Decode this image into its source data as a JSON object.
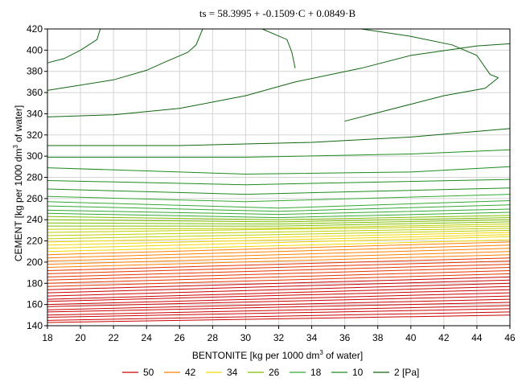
{
  "chart_data": {
    "type": "contour",
    "title": "ts = 58.3995 + -0.1509·C + 0.0849·B",
    "xlabel": {
      "pre": "BENTONITE [kg per 1000 dm",
      "sup": "3",
      "post": " of water]"
    },
    "ylabel": {
      "pre": "CEMENT [kg per 1000 dm",
      "sup": "3",
      "post": " of water]"
    },
    "xlim": [
      18,
      46
    ],
    "ylim": [
      140,
      420
    ],
    "xticks": [
      "18",
      "20",
      "22",
      "24",
      "26",
      "28",
      "30",
      "32",
      "34",
      "36",
      "38",
      "40",
      "42",
      "44",
      "46"
    ],
    "yticks": [
      "140",
      "160",
      "180",
      "200",
      "220",
      "240",
      "260",
      "280",
      "300",
      "320",
      "340",
      "360",
      "380",
      "400",
      "420"
    ],
    "grid": true,
    "legend_placement": "bottom",
    "legend": [
      {
        "label": "50",
        "color": "#cc0000"
      },
      {
        "label": "42",
        "color": "#ff7f00"
      },
      {
        "label": "34",
        "color": "#f2d600"
      },
      {
        "label": "26",
        "color": "#7fbf00"
      },
      {
        "label": "18",
        "color": "#33aa33"
      },
      {
        "label": "10",
        "color": "#1e8c1e"
      },
      {
        "label": "2 [Pa]",
        "color": "#116611"
      }
    ],
    "contour_levels": [
      2,
      10,
      18,
      26,
      34,
      42,
      50
    ],
    "contour_lines": [
      {
        "points": [
          [
            18,
            143
          ],
          [
            46,
            150
          ]
        ]
      },
      {
        "points": [
          [
            18,
            145
          ],
          [
            46,
            153
          ]
        ]
      },
      {
        "points": [
          [
            18,
            148
          ],
          [
            46,
            156
          ]
        ]
      },
      {
        "points": [
          [
            18,
            150
          ],
          [
            46,
            159
          ]
        ]
      },
      {
        "points": [
          [
            18,
            153
          ],
          [
            46,
            162
          ]
        ]
      },
      {
        "points": [
          [
            18,
            155
          ],
          [
            46,
            165
          ]
        ]
      },
      {
        "points": [
          [
            18,
            158
          ],
          [
            46,
            168
          ]
        ]
      },
      {
        "points": [
          [
            18,
            160
          ],
          [
            46,
            171
          ]
        ]
      },
      {
        "points": [
          [
            18,
            163
          ],
          [
            46,
            174
          ]
        ]
      },
      {
        "points": [
          [
            18,
            165
          ],
          [
            46,
            177
          ]
        ]
      },
      {
        "points": [
          [
            18,
            168
          ],
          [
            46,
            180
          ]
        ]
      },
      {
        "points": [
          [
            18,
            171
          ],
          [
            46,
            183
          ]
        ]
      },
      {
        "points": [
          [
            18,
            174
          ],
          [
            46,
            186
          ]
        ]
      },
      {
        "points": [
          [
            18,
            177
          ],
          [
            46,
            189
          ]
        ]
      },
      {
        "points": [
          [
            18,
            180
          ],
          [
            46,
            192
          ]
        ]
      },
      {
        "points": [
          [
            18,
            183
          ],
          [
            46,
            195
          ]
        ]
      },
      {
        "points": [
          [
            18,
            186
          ],
          [
            46,
            198
          ]
        ]
      },
      {
        "points": [
          [
            18,
            189
          ],
          [
            46,
            201
          ]
        ]
      },
      {
        "points": [
          [
            18,
            192
          ],
          [
            46,
            204
          ]
        ]
      },
      {
        "points": [
          [
            18,
            195
          ],
          [
            46,
            207
          ]
        ]
      },
      {
        "points": [
          [
            18,
            198
          ],
          [
            46,
            210
          ]
        ]
      },
      {
        "points": [
          [
            18,
            201
          ],
          [
            46,
            213
          ]
        ]
      },
      {
        "points": [
          [
            18,
            204
          ],
          [
            46,
            216
          ]
        ]
      },
      {
        "points": [
          [
            18,
            207
          ],
          [
            46,
            219
          ]
        ]
      },
      {
        "points": [
          [
            18,
            210
          ],
          [
            46,
            221
          ]
        ]
      },
      {
        "points": [
          [
            18,
            213
          ],
          [
            46,
            224
          ]
        ]
      },
      {
        "points": [
          [
            18,
            216
          ],
          [
            46,
            226
          ]
        ]
      },
      {
        "points": [
          [
            18,
            219
          ],
          [
            46,
            228
          ]
        ]
      },
      {
        "points": [
          [
            18,
            222
          ],
          [
            46,
            230
          ]
        ]
      },
      {
        "points": [
          [
            18,
            225
          ],
          [
            46,
            232
          ]
        ]
      },
      {
        "points": [
          [
            18,
            228
          ],
          [
            46,
            234
          ]
        ]
      },
      {
        "points": [
          [
            18,
            231
          ],
          [
            32,
            232
          ],
          [
            46,
            236
          ]
        ]
      },
      {
        "points": [
          [
            18,
            234
          ],
          [
            32,
            234
          ],
          [
            46,
            238
          ]
        ]
      },
      {
        "points": [
          [
            18,
            237
          ],
          [
            32,
            236
          ],
          [
            46,
            240
          ]
        ]
      },
      {
        "points": [
          [
            18,
            240
          ],
          [
            32,
            238
          ],
          [
            46,
            242
          ]
        ]
      },
      {
        "points": [
          [
            18,
            243
          ],
          [
            32,
            240
          ],
          [
            46,
            244
          ]
        ]
      },
      {
        "points": [
          [
            18,
            246
          ],
          [
            32,
            242
          ],
          [
            46,
            247
          ]
        ]
      },
      {
        "points": [
          [
            18,
            249
          ],
          [
            32,
            245
          ],
          [
            46,
            250
          ]
        ]
      },
      {
        "points": [
          [
            18,
            253
          ],
          [
            32,
            248
          ],
          [
            46,
            254
          ]
        ]
      },
      {
        "points": [
          [
            18,
            257
          ],
          [
            32,
            251
          ],
          [
            46,
            258
          ]
        ]
      },
      {
        "points": [
          [
            18,
            262
          ],
          [
            30,
            257
          ],
          [
            46,
            264
          ]
        ]
      },
      {
        "points": [
          [
            18,
            269
          ],
          [
            30,
            264
          ],
          [
            46,
            270
          ]
        ]
      },
      {
        "points": [
          [
            18,
            277
          ],
          [
            30,
            273
          ],
          [
            46,
            278
          ]
        ]
      },
      {
        "points": [
          [
            18,
            289
          ],
          [
            30,
            283
          ],
          [
            40,
            285
          ],
          [
            46,
            290
          ]
        ]
      },
      {
        "points": [
          [
            18,
            299
          ],
          [
            30,
            299
          ],
          [
            40,
            302
          ],
          [
            46,
            306
          ]
        ]
      },
      {
        "points": [
          [
            18,
            310
          ],
          [
            26,
            310
          ],
          [
            34,
            313
          ],
          [
            40,
            318
          ],
          [
            46,
            326
          ]
        ]
      },
      {
        "points": [
          [
            18,
            337
          ],
          [
            22,
            339
          ],
          [
            26,
            345
          ],
          [
            30,
            357
          ],
          [
            33,
            370
          ],
          [
            37,
            383
          ],
          [
            40,
            395
          ],
          [
            44,
            404
          ],
          [
            46,
            406
          ]
        ]
      },
      {
        "points": [
          [
            18,
            362
          ],
          [
            22,
            372
          ],
          [
            24,
            381
          ],
          [
            25,
            388
          ],
          [
            26.5,
            398
          ],
          [
            27,
            405
          ],
          [
            27.4,
            420
          ]
        ]
      },
      {
        "points": [
          [
            18,
            388
          ],
          [
            19,
            392
          ],
          [
            20,
            400
          ],
          [
            21,
            410
          ],
          [
            21.2,
            420
          ]
        ]
      },
      {
        "points": [
          [
            33,
            383
          ],
          [
            32.8,
            398
          ],
          [
            32.5,
            410
          ],
          [
            31,
            420
          ]
        ]
      },
      {
        "points": [
          [
            37,
            420
          ],
          [
            40,
            413
          ],
          [
            42.5,
            405
          ],
          [
            44,
            395
          ],
          [
            44.8,
            377
          ],
          [
            45.3,
            374
          ]
        ]
      },
      {
        "points": [
          [
            45.3,
            374
          ],
          [
            44.5,
            364
          ],
          [
            42,
            357
          ],
          [
            40,
            349
          ],
          [
            38,
            341
          ],
          [
            36,
            333
          ]
        ]
      }
    ]
  }
}
